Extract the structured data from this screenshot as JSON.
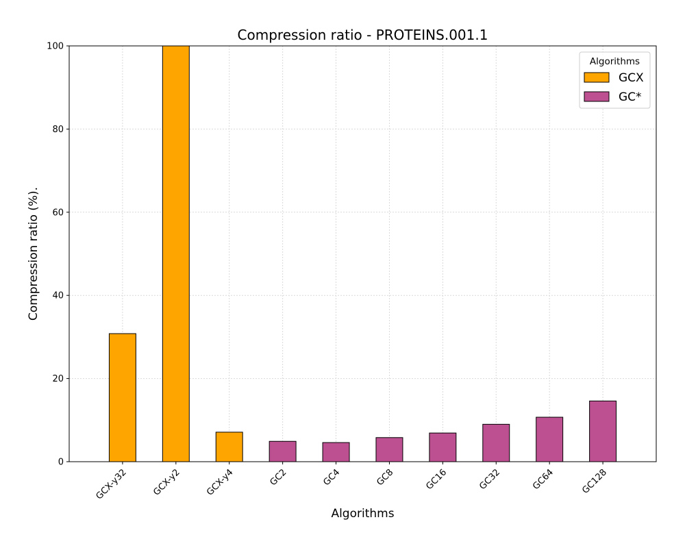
{
  "chart_data": {
    "type": "bar",
    "title": "Compression ratio -  PROTEINS.001.1",
    "xlabel": "Algorithms",
    "ylabel": "Compression ratio (%).",
    "ylim": [
      0,
      100
    ],
    "yticks": [
      0,
      20,
      40,
      60,
      80,
      100
    ],
    "grid": true,
    "legend": {
      "title": "Algorithms",
      "placement": "top-right",
      "entries": [
        {
          "label": "GCX",
          "color": "#FFA500"
        },
        {
          "label": "GC*",
          "color": "#BC5090"
        }
      ]
    },
    "categories": [
      "GCX-y32",
      "GCX-y2",
      "GCX-y4",
      "GC2",
      "GC4",
      "GC8",
      "GC16",
      "GC32",
      "GC64",
      "GC128"
    ],
    "series": [
      {
        "name": "GCX",
        "color": "#FFA500",
        "values": [
          30.8,
          100,
          7.1,
          null,
          null,
          null,
          null,
          null,
          null,
          null
        ]
      },
      {
        "name": "GC*",
        "color": "#BC5090",
        "values": [
          null,
          null,
          null,
          4.9,
          4.6,
          5.8,
          6.9,
          9.0,
          10.7,
          14.6
        ]
      }
    ]
  }
}
